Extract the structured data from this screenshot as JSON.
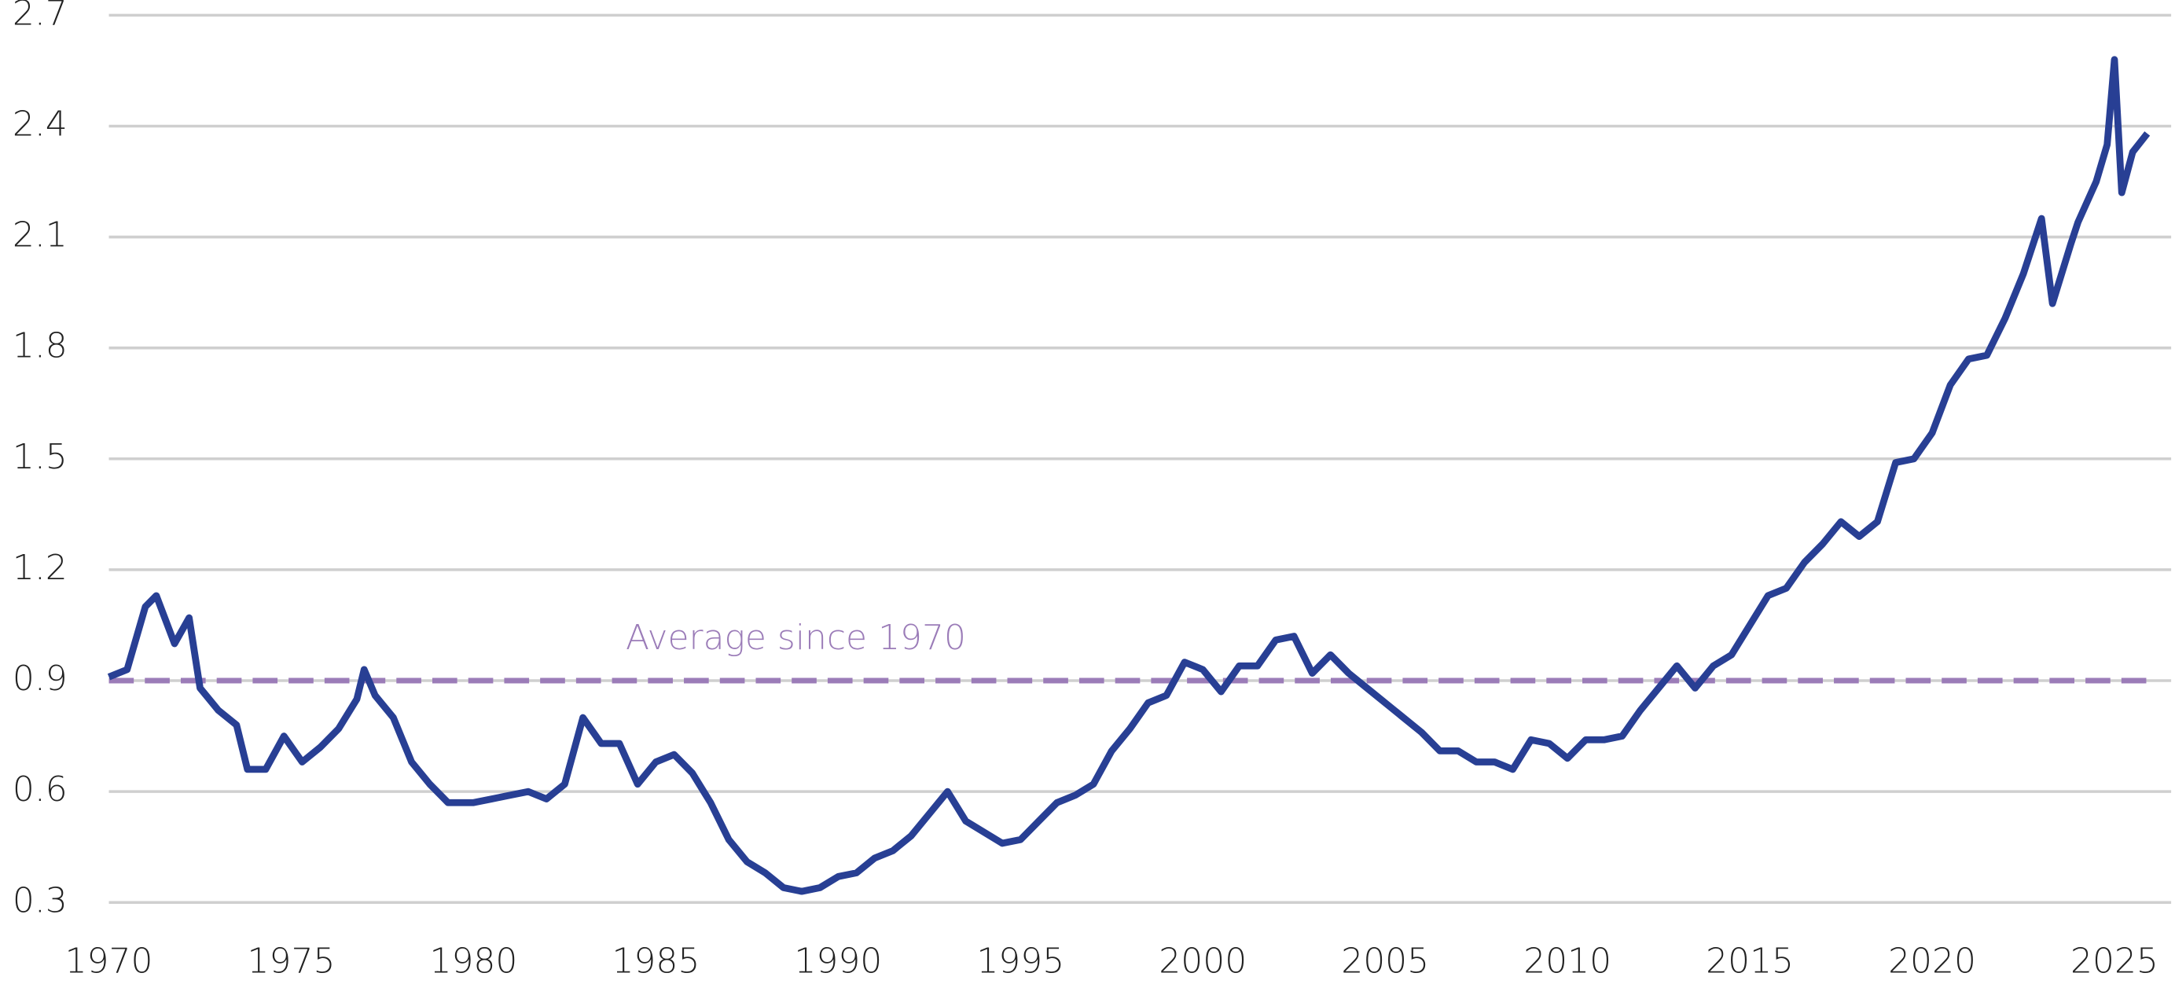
{
  "chart_data": {
    "type": "line",
    "x": [
      1970,
      1970.5,
      1971,
      1971.3,
      1971.8,
      1972.2,
      1972.5,
      1973,
      1973.5,
      1973.8,
      1974.3,
      1974.8,
      1975.3,
      1975.8,
      1976.3,
      1976.8,
      1977,
      1977.3,
      1977.8,
      1978.3,
      1978.8,
      1979.3,
      1980,
      1980.5,
      1981,
      1981.5,
      1982,
      1982.5,
      1983,
      1983.5,
      1984,
      1984.5,
      1985,
      1985.5,
      1986,
      1986.5,
      1987,
      1987.5,
      1988,
      1988.5,
      1989,
      1989.5,
      1990,
      1990.5,
      1991,
      1991.5,
      1992,
      1992.5,
      1993,
      1993.5,
      1994,
      1994.5,
      1995,
      1995.5,
      1996,
      1996.5,
      1997,
      1997.5,
      1998,
      1998.5,
      1999,
      1999.5,
      2000,
      2000.5,
      2001,
      2001.5,
      2002,
      2002.5,
      2003,
      2003.5,
      2004,
      2004.5,
      2005,
      2005.5,
      2006,
      2006.5,
      2007,
      2007.5,
      2008,
      2008.5,
      2009,
      2009.5,
      2010,
      2010.5,
      2011,
      2011.5,
      2012,
      2012.5,
      2013,
      2013.5,
      2014,
      2014.5,
      2015,
      2015.5,
      2016,
      2016.5,
      2017,
      2017.5,
      2018,
      2018.5,
      2019,
      2019.5,
      2020,
      2020.5,
      2021,
      2021.5,
      2022,
      2022.5,
      2023,
      2023.3,
      2023.8,
      2024,
      2024.5,
      2024.8,
      2025,
      2025.2,
      2025.5,
      2025.9
    ],
    "series": [
      {
        "color": "#283f94",
        "values": [
          0.91,
          0.93,
          1.1,
          1.13,
          1.0,
          1.07,
          0.88,
          0.82,
          0.78,
          0.66,
          0.66,
          0.75,
          0.68,
          0.72,
          0.77,
          0.85,
          0.93,
          0.86,
          0.8,
          0.68,
          0.62,
          0.57,
          0.57,
          0.58,
          0.59,
          0.6,
          0.58,
          0.62,
          0.8,
          0.73,
          0.73,
          0.62,
          0.68,
          0.7,
          0.65,
          0.57,
          0.47,
          0.41,
          0.38,
          0.34,
          0.33,
          0.34,
          0.37,
          0.38,
          0.42,
          0.44,
          0.48,
          0.54,
          0.6,
          0.52,
          0.49,
          0.46,
          0.47,
          0.52,
          0.57,
          0.59,
          0.62,
          0.71,
          0.77,
          0.84,
          0.86,
          0.95,
          0.93,
          0.87,
          0.94,
          0.94,
          1.01,
          1.02,
          0.92,
          0.97,
          0.92,
          0.88,
          0.84,
          0.8,
          0.76,
          0.71,
          0.71,
          0.68,
          0.68,
          0.66,
          0.74,
          0.73,
          0.69,
          0.74,
          0.74,
          0.75,
          0.82,
          0.88,
          0.94,
          0.88,
          0.94,
          0.97,
          1.05,
          1.13,
          1.15,
          1.22,
          1.27,
          1.33,
          1.29,
          1.33,
          1.49,
          1.5,
          1.57,
          1.7,
          1.77,
          1.78,
          1.88,
          2.0,
          2.15,
          1.92,
          2.08,
          2.14,
          2.25,
          2.35,
          2.58,
          2.22,
          2.33,
          2.38
        ]
      }
    ],
    "reference_line": {
      "value": 0.9,
      "label": "Average since 1970",
      "color": "#9b7cb8"
    },
    "xlim": [
      1970,
      2026.1
    ],
    "xticks": [
      1970,
      1975,
      1980,
      1985,
      1990,
      1995,
      2000,
      2005,
      2010,
      2015,
      2020,
      2025
    ],
    "ylim": [
      0.3,
      2.7
    ],
    "yticks": [
      0.3,
      0.6,
      0.9,
      1.2,
      1.5,
      1.8,
      2.1,
      2.4,
      2.7
    ],
    "grid": true
  }
}
